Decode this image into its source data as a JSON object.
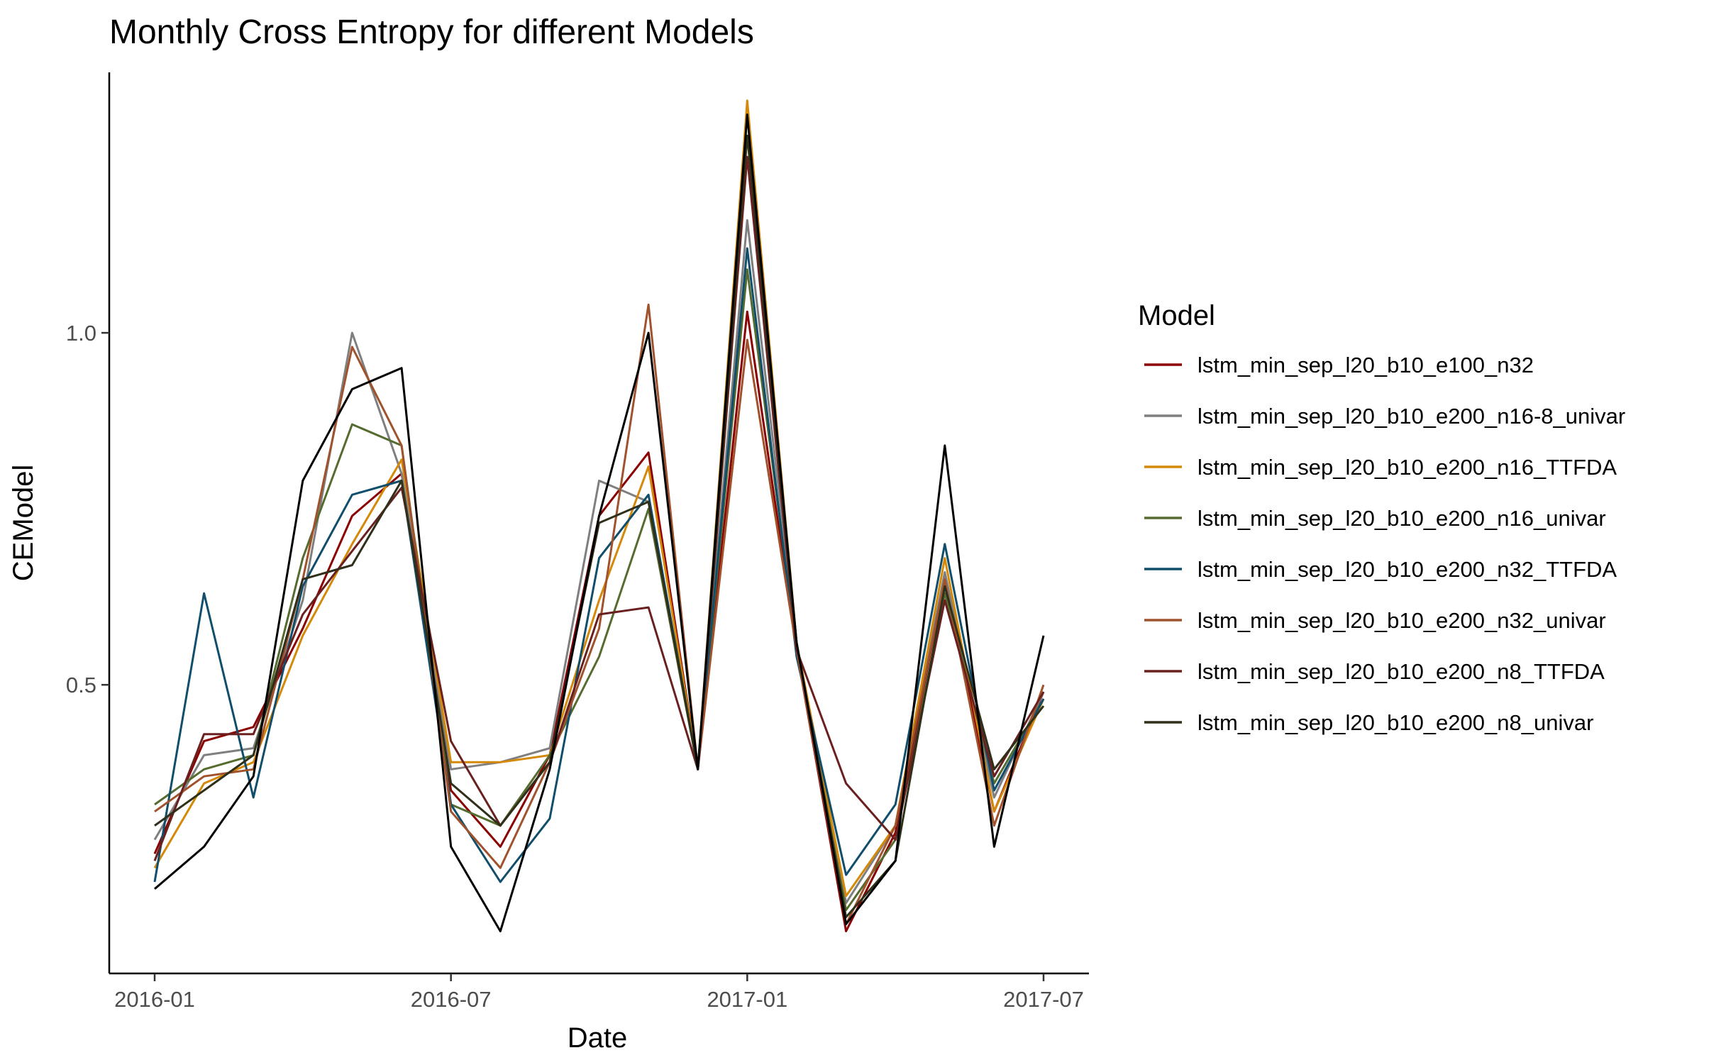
{
  "chart_data": {
    "type": "line",
    "title": "Monthly Cross Entropy for different Models",
    "xlabel": "Date",
    "ylabel": "CEModel",
    "x": [
      "2016-01",
      "2016-02",
      "2016-03",
      "2016-04",
      "2016-05",
      "2016-06",
      "2016-07",
      "2016-08",
      "2016-09",
      "2016-10",
      "2016-11",
      "2016-12",
      "2017-01",
      "2017-02",
      "2017-03",
      "2017-04",
      "2017-05",
      "2017-06",
      "2017-07"
    ],
    "x_ticks": [
      "2016-01",
      "2016-07",
      "2017-01",
      "2017-07"
    ],
    "y_ticks": [
      0.5,
      1.0
    ],
    "y_tick_labels": [
      "0.5",
      "1.0"
    ],
    "ylim": [
      0.09,
      1.37
    ],
    "grid": false,
    "legend": {
      "title": "Model",
      "position": "right"
    },
    "series": [
      {
        "name": "lstm_min_sep_l20_b10_e100_n32",
        "color": "#8b0000",
        "values": [
          0.26,
          0.42,
          0.44,
          0.58,
          0.74,
          0.8,
          0.35,
          0.27,
          0.4,
          0.74,
          0.83,
          0.38,
          1.03,
          0.55,
          0.15,
          0.29,
          0.65,
          0.32,
          0.49
        ]
      },
      {
        "name": "lstm_min_sep_l20_b10_e200_n16-8_univar",
        "color": "#7f7f7f",
        "values": [
          0.28,
          0.4,
          0.41,
          0.62,
          1.0,
          0.8,
          0.38,
          0.39,
          0.41,
          0.79,
          0.76,
          0.38,
          1.16,
          0.56,
          0.19,
          0.3,
          0.66,
          0.34,
          0.49
        ]
      },
      {
        "name": "lstm_min_sep_l20_b10_e200_n16_TTFDA",
        "color": "#d4890a",
        "values": [
          0.24,
          0.36,
          0.39,
          0.57,
          0.7,
          0.82,
          0.39,
          0.39,
          0.4,
          0.62,
          0.81,
          0.38,
          1.33,
          0.56,
          0.2,
          0.3,
          0.68,
          0.32,
          0.48
        ]
      },
      {
        "name": "lstm_min_sep_l20_b10_e200_n16_univar",
        "color": "#556b2f",
        "values": [
          0.33,
          0.38,
          0.4,
          0.68,
          0.87,
          0.84,
          0.33,
          0.3,
          0.4,
          0.54,
          0.75,
          0.38,
          1.09,
          0.55,
          0.18,
          0.28,
          0.63,
          0.36,
          0.48
        ]
      },
      {
        "name": "lstm_min_sep_l20_b10_e200_n32_TTFDA",
        "color": "#104e6b",
        "values": [
          0.22,
          0.63,
          0.34,
          0.64,
          0.77,
          0.79,
          0.33,
          0.22,
          0.31,
          0.68,
          0.77,
          0.38,
          1.12,
          0.54,
          0.23,
          0.33,
          0.7,
          0.35,
          0.48
        ]
      },
      {
        "name": "lstm_min_sep_l20_b10_e200_n32_univar",
        "color": "#a0522d",
        "values": [
          0.32,
          0.37,
          0.38,
          0.65,
          0.98,
          0.84,
          0.32,
          0.24,
          0.39,
          0.58,
          1.04,
          0.38,
          0.99,
          0.55,
          0.16,
          0.3,
          0.65,
          0.3,
          0.5
        ]
      },
      {
        "name": "lstm_min_sep_l20_b10_e200_n8_TTFDA",
        "color": "#6b2020",
        "values": [
          0.25,
          0.43,
          0.43,
          0.6,
          0.69,
          0.78,
          0.42,
          0.3,
          0.39,
          0.6,
          0.61,
          0.38,
          1.25,
          0.55,
          0.36,
          0.28,
          0.62,
          0.37,
          0.49
        ]
      },
      {
        "name": "lstm_min_sep_l20_b10_e200_n8_univar",
        "color": "#2f2f1a",
        "values": [
          0.3,
          0.35,
          0.4,
          0.65,
          0.67,
          0.79,
          0.36,
          0.3,
          0.39,
          0.73,
          0.76,
          0.38,
          1.28,
          0.56,
          0.17,
          0.25,
          0.64,
          0.38,
          0.47
        ]
      },
      {
        "name": "",
        "color": "#000000",
        "values": [
          0.21,
          0.27,
          0.37,
          0.79,
          0.92,
          0.95,
          0.27,
          0.15,
          0.38,
          0.74,
          1.0,
          0.38,
          1.31,
          0.56,
          0.16,
          0.25,
          0.84,
          0.27,
          0.57
        ]
      }
    ]
  }
}
